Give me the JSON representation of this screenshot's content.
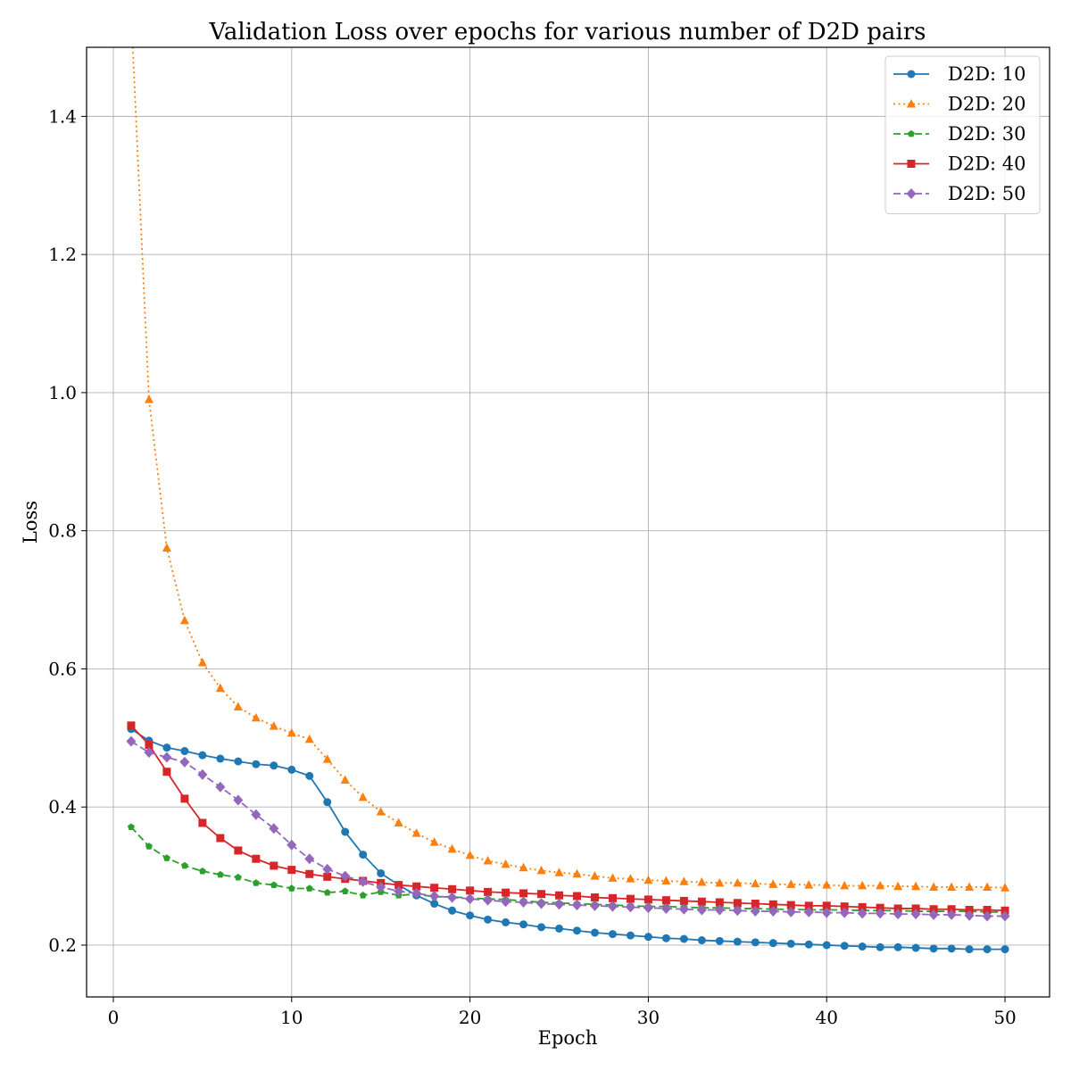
{
  "chart_data": {
    "type": "line",
    "title": "Validation Loss over epochs for various number of D2D pairs",
    "xlabel": "Epoch",
    "ylabel": "Loss",
    "xlim": [
      -1.5,
      52.5
    ],
    "ylim": [
      0.125,
      1.5
    ],
    "xticks": [
      0,
      10,
      20,
      30,
      40,
      50
    ],
    "yticks": [
      0.2,
      0.4,
      0.6,
      0.8,
      1.0,
      1.2,
      1.4
    ],
    "ytick_labels": [
      "0.2",
      "0.4",
      "0.6",
      "0.8",
      "1.0",
      "1.2",
      "1.4"
    ],
    "grid": true,
    "legend_position": "top-right",
    "x": [
      1,
      2,
      3,
      4,
      5,
      6,
      7,
      8,
      9,
      10,
      11,
      12,
      13,
      14,
      15,
      16,
      17,
      18,
      19,
      20,
      21,
      22,
      23,
      24,
      25,
      26,
      27,
      28,
      29,
      30,
      31,
      32,
      33,
      34,
      35,
      36,
      37,
      38,
      39,
      40,
      41,
      42,
      43,
      44,
      45,
      46,
      47,
      48,
      49,
      50
    ],
    "series": [
      {
        "name": "D2D: 10",
        "color": "#1f77b4",
        "linestyle": "solid",
        "marker": "circle",
        "values": [
          0.513,
          0.496,
          0.486,
          0.481,
          0.475,
          0.47,
          0.466,
          0.462,
          0.46,
          0.454,
          0.445,
          0.407,
          0.364,
          0.331,
          0.304,
          0.287,
          0.272,
          0.26,
          0.25,
          0.243,
          0.237,
          0.233,
          0.23,
          0.226,
          0.224,
          0.221,
          0.218,
          0.216,
          0.214,
          0.212,
          0.21,
          0.209,
          0.207,
          0.206,
          0.205,
          0.204,
          0.203,
          0.202,
          0.201,
          0.2,
          0.199,
          0.198,
          0.197,
          0.197,
          0.196,
          0.195,
          0.195,
          0.194,
          0.194,
          0.194
        ]
      },
      {
        "name": "D2D: 20",
        "color": "#ff7f0e",
        "linestyle": "dotted",
        "marker": "triangle",
        "values": [
          1.55,
          0.99,
          0.775,
          0.67,
          0.609,
          0.572,
          0.545,
          0.529,
          0.517,
          0.507,
          0.498,
          0.469,
          0.439,
          0.414,
          0.393,
          0.377,
          0.362,
          0.349,
          0.339,
          0.33,
          0.322,
          0.317,
          0.312,
          0.308,
          0.305,
          0.303,
          0.3,
          0.297,
          0.296,
          0.294,
          0.293,
          0.292,
          0.291,
          0.29,
          0.29,
          0.289,
          0.288,
          0.288,
          0.287,
          0.287,
          0.286,
          0.286,
          0.286,
          0.285,
          0.285,
          0.284,
          0.284,
          0.284,
          0.284,
          0.283
        ]
      },
      {
        "name": "D2D: 30",
        "color": "#2ca02c",
        "linestyle": "dashed",
        "marker": "pentagon",
        "values": [
          0.371,
          0.343,
          0.326,
          0.315,
          0.307,
          0.302,
          0.298,
          0.29,
          0.287,
          0.282,
          0.282,
          0.276,
          0.278,
          0.272,
          0.277,
          0.272,
          0.274,
          0.27,
          0.27,
          0.268,
          0.267,
          0.266,
          0.264,
          0.262,
          0.261,
          0.26,
          0.259,
          0.258,
          0.257,
          0.256,
          0.256,
          0.255,
          0.254,
          0.254,
          0.253,
          0.253,
          0.252,
          0.252,
          0.251,
          0.251,
          0.251,
          0.25,
          0.25,
          0.25,
          0.249,
          0.249,
          0.249,
          0.249,
          0.248,
          0.248
        ]
      },
      {
        "name": "D2D: 40",
        "color": "#d62728",
        "linestyle": "solid",
        "marker": "square",
        "values": [
          0.518,
          0.49,
          0.451,
          0.412,
          0.377,
          0.355,
          0.337,
          0.325,
          0.315,
          0.309,
          0.303,
          0.299,
          0.296,
          0.293,
          0.29,
          0.287,
          0.285,
          0.283,
          0.281,
          0.279,
          0.277,
          0.276,
          0.275,
          0.274,
          0.272,
          0.271,
          0.269,
          0.268,
          0.267,
          0.266,
          0.265,
          0.264,
          0.263,
          0.262,
          0.261,
          0.26,
          0.259,
          0.258,
          0.257,
          0.257,
          0.256,
          0.255,
          0.254,
          0.253,
          0.253,
          0.252,
          0.252,
          0.251,
          0.251,
          0.25
        ]
      },
      {
        "name": "D2D: 50",
        "color": "#9467bd",
        "linestyle": "dashed",
        "marker": "diamond",
        "values": [
          0.495,
          0.479,
          0.472,
          0.465,
          0.447,
          0.429,
          0.41,
          0.389,
          0.369,
          0.345,
          0.325,
          0.31,
          0.3,
          0.292,
          0.284,
          0.278,
          0.275,
          0.271,
          0.269,
          0.267,
          0.265,
          0.263,
          0.262,
          0.26,
          0.259,
          0.258,
          0.257,
          0.256,
          0.255,
          0.254,
          0.253,
          0.252,
          0.251,
          0.251,
          0.25,
          0.249,
          0.249,
          0.248,
          0.248,
          0.247,
          0.247,
          0.246,
          0.246,
          0.245,
          0.245,
          0.244,
          0.244,
          0.243,
          0.242,
          0.242
        ]
      }
    ]
  }
}
